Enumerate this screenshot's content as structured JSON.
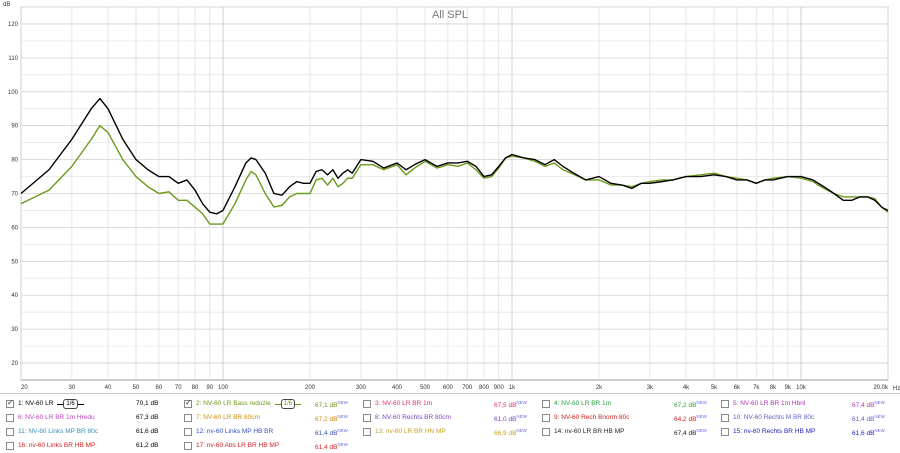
{
  "chart_data": {
    "type": "line",
    "title": "All SPL",
    "ylabel": "dB",
    "xlabel": "Hz",
    "x_scale": "log",
    "xlim": [
      20,
      20000
    ],
    "ylim": [
      15,
      125
    ],
    "grid": true,
    "yticks": [
      20,
      30,
      40,
      50,
      60,
      70,
      80,
      90,
      100,
      110,
      120
    ],
    "xticks": [
      {
        "v": 20,
        "l": "20"
      },
      {
        "v": 30,
        "l": "30"
      },
      {
        "v": 40,
        "l": "40"
      },
      {
        "v": 50,
        "l": "50"
      },
      {
        "v": 60,
        "l": "60"
      },
      {
        "v": 70,
        "l": "70"
      },
      {
        "v": 80,
        "l": "80"
      },
      {
        "v": 90,
        "l": "90"
      },
      {
        "v": 100,
        "l": "100"
      },
      {
        "v": 200,
        "l": "200"
      },
      {
        "v": 300,
        "l": "300"
      },
      {
        "v": 400,
        "l": "400"
      },
      {
        "v": 500,
        "l": "500"
      },
      {
        "v": 600,
        "l": "600"
      },
      {
        "v": 700,
        "l": "700"
      },
      {
        "v": 800,
        "l": "800"
      },
      {
        "v": 900,
        "l": "900"
      },
      {
        "v": 1000,
        "l": "1k"
      },
      {
        "v": 2000,
        "l": "2k"
      },
      {
        "v": 3000,
        "l": "3k"
      },
      {
        "v": 4000,
        "l": "4k"
      },
      {
        "v": 5000,
        "l": "5k"
      },
      {
        "v": 6000,
        "l": "6k"
      },
      {
        "v": 7000,
        "l": "7k"
      },
      {
        "v": 8000,
        "l": "8k"
      },
      {
        "v": 9000,
        "l": "9k"
      },
      {
        "v": 10000,
        "l": "10k"
      },
      {
        "v": 20000,
        "l": "20,0k"
      }
    ],
    "series": [
      {
        "name": "1: NV-60 LR",
        "color": "#000000",
        "points": [
          [
            20,
            70
          ],
          [
            25,
            77
          ],
          [
            30,
            86
          ],
          [
            35,
            95
          ],
          [
            37.5,
            98
          ],
          [
            40,
            95
          ],
          [
            45,
            86
          ],
          [
            50,
            80
          ],
          [
            55,
            77
          ],
          [
            60,
            75
          ],
          [
            65,
            75
          ],
          [
            70,
            73
          ],
          [
            75,
            74
          ],
          [
            80,
            71
          ],
          [
            85,
            67
          ],
          [
            90,
            64.5
          ],
          [
            95,
            64
          ],
          [
            100,
            65
          ],
          [
            110,
            72
          ],
          [
            120,
            79
          ],
          [
            125,
            80.5
          ],
          [
            130,
            80
          ],
          [
            140,
            76
          ],
          [
            150,
            70
          ],
          [
            160,
            69.5
          ],
          [
            170,
            72
          ],
          [
            180,
            73.5
          ],
          [
            190,
            73
          ],
          [
            200,
            73
          ],
          [
            210,
            76.5
          ],
          [
            220,
            77
          ],
          [
            230,
            75.5
          ],
          [
            240,
            77
          ],
          [
            250,
            74.5
          ],
          [
            260,
            76
          ],
          [
            270,
            77
          ],
          [
            280,
            76
          ],
          [
            300,
            80
          ],
          [
            330,
            79.5
          ],
          [
            360,
            77.5
          ],
          [
            400,
            79
          ],
          [
            430,
            77
          ],
          [
            460,
            78.5
          ],
          [
            500,
            80
          ],
          [
            550,
            78
          ],
          [
            600,
            79
          ],
          [
            650,
            79
          ],
          [
            700,
            79.5
          ],
          [
            750,
            78
          ],
          [
            800,
            75
          ],
          [
            850,
            75.5
          ],
          [
            900,
            78
          ],
          [
            950,
            80.5
          ],
          [
            1000,
            81.5
          ],
          [
            1100,
            80.5
          ],
          [
            1200,
            80
          ],
          [
            1300,
            78.5
          ],
          [
            1400,
            80
          ],
          [
            1500,
            78
          ],
          [
            1600,
            76.5
          ],
          [
            1800,
            74
          ],
          [
            2000,
            75
          ],
          [
            2200,
            73
          ],
          [
            2400,
            72.5
          ],
          [
            2600,
            71.5
          ],
          [
            2800,
            73
          ],
          [
            3000,
            73
          ],
          [
            3300,
            73.5
          ],
          [
            3600,
            74
          ],
          [
            4000,
            75
          ],
          [
            4500,
            75
          ],
          [
            5000,
            75.5
          ],
          [
            5500,
            75
          ],
          [
            6000,
            74
          ],
          [
            6500,
            74
          ],
          [
            7000,
            73
          ],
          [
            7500,
            74
          ],
          [
            8000,
            74
          ],
          [
            9000,
            75
          ],
          [
            10000,
            75
          ],
          [
            11000,
            74
          ],
          [
            12000,
            72
          ],
          [
            13000,
            70
          ],
          [
            14000,
            68
          ],
          [
            15000,
            68
          ],
          [
            16000,
            69
          ],
          [
            17000,
            69
          ],
          [
            18000,
            68
          ],
          [
            19000,
            66
          ],
          [
            20000,
            65
          ]
        ]
      },
      {
        "name": "2: NV-60 LR Bass reduzie",
        "color": "#6a9a1a",
        "points": [
          [
            20,
            67
          ],
          [
            25,
            71
          ],
          [
            30,
            78
          ],
          [
            35,
            86
          ],
          [
            37.5,
            90
          ],
          [
            40,
            88
          ],
          [
            45,
            80
          ],
          [
            50,
            75
          ],
          [
            55,
            72
          ],
          [
            60,
            70
          ],
          [
            65,
            70.5
          ],
          [
            70,
            68
          ],
          [
            75,
            68
          ],
          [
            80,
            66
          ],
          [
            85,
            64
          ],
          [
            90,
            61
          ],
          [
            95,
            61
          ],
          [
            100,
            61
          ],
          [
            110,
            67
          ],
          [
            120,
            74
          ],
          [
            125,
            76.5
          ],
          [
            130,
            75.5
          ],
          [
            140,
            70
          ],
          [
            150,
            66
          ],
          [
            160,
            66.5
          ],
          [
            170,
            69
          ],
          [
            180,
            70
          ],
          [
            190,
            70
          ],
          [
            200,
            70
          ],
          [
            210,
            74
          ],
          [
            220,
            74.5
          ],
          [
            230,
            72.5
          ],
          [
            240,
            74.5
          ],
          [
            250,
            72
          ],
          [
            260,
            73
          ],
          [
            270,
            74.5
          ],
          [
            280,
            74.5
          ],
          [
            300,
            78.5
          ],
          [
            330,
            78.5
          ],
          [
            360,
            77
          ],
          [
            400,
            78.5
          ],
          [
            430,
            75.5
          ],
          [
            460,
            77.5
          ],
          [
            500,
            79.5
          ],
          [
            550,
            77.5
          ],
          [
            600,
            78.5
          ],
          [
            650,
            78
          ],
          [
            700,
            79
          ],
          [
            750,
            77
          ],
          [
            800,
            74.5
          ],
          [
            850,
            75
          ],
          [
            900,
            77.5
          ],
          [
            950,
            80.5
          ],
          [
            1000,
            81
          ],
          [
            1100,
            80.5
          ],
          [
            1200,
            79.5
          ],
          [
            1300,
            78
          ],
          [
            1400,
            79
          ],
          [
            1500,
            77
          ],
          [
            1600,
            76
          ],
          [
            1800,
            74
          ],
          [
            2000,
            74
          ],
          [
            2200,
            72.5
          ],
          [
            2400,
            72.5
          ],
          [
            2600,
            72
          ],
          [
            2800,
            73
          ],
          [
            3000,
            73.5
          ],
          [
            3300,
            74
          ],
          [
            3600,
            74
          ],
          [
            4000,
            75
          ],
          [
            4500,
            75.5
          ],
          [
            5000,
            76
          ],
          [
            5500,
            75
          ],
          [
            6000,
            74.5
          ],
          [
            6500,
            74
          ],
          [
            7000,
            73
          ],
          [
            7500,
            74
          ],
          [
            8000,
            74.5
          ],
          [
            9000,
            75
          ],
          [
            10000,
            74.5
          ],
          [
            11000,
            73.5
          ],
          [
            12000,
            71.5
          ],
          [
            13000,
            70
          ],
          [
            14000,
            69
          ],
          [
            15000,
            69
          ],
          [
            16000,
            69
          ],
          [
            17000,
            69
          ],
          [
            18000,
            68.5
          ],
          [
            19000,
            66
          ],
          [
            20000,
            64.5
          ]
        ]
      }
    ]
  },
  "legend": {
    "rows": [
      [
        {
          "label": "1: NV-60 LR",
          "color": "#000000",
          "value": "70,1 dB",
          "checked": true,
          "smooth": "1/6"
        },
        {
          "label": "2: NV-60 LR Bass reduzie",
          "color": "#6a9a1a",
          "value": "67,1 dB",
          "checked": true,
          "smooth": "1/6"
        },
        {
          "label": "3: NV-60 LR BR 1m",
          "color": "#e0306a",
          "value": "67,5 dB",
          "checked": false,
          "smooth": ""
        },
        {
          "label": "4: NV-60 LR BR 1m",
          "color": "#2aa040",
          "value": "67,2 dB",
          "checked": false,
          "smooth": ""
        },
        {
          "label": "5: NV-60 LR BR 1m Hbril",
          "color": "#b030b0",
          "value": "67,4 dB",
          "checked": false,
          "smooth": ""
        }
      ],
      [
        {
          "label": "6: NV-60 LR BR 1m Hredu",
          "color": "#c040c0",
          "value": "67,3 dB",
          "checked": false,
          "smooth": ""
        },
        {
          "label": "7: NV-60 LR BR 80cm",
          "color": "#d08a10",
          "value": "67,2 dB",
          "checked": false,
          "smooth": ""
        },
        {
          "label": "8: NV-60 Rechts BR 80cm",
          "color": "#8040c0",
          "value": "61,0 dB",
          "checked": false,
          "smooth": ""
        },
        {
          "label": "9: NV-60 Rech Bnorm 80c",
          "color": "#d02020",
          "value": "64,2 dB",
          "checked": false,
          "smooth": ""
        },
        {
          "label": "10: NV-60 Rechts M BR 80c",
          "color": "#6060c0",
          "value": "61,4 dB",
          "checked": false,
          "smooth": ""
        }
      ],
      [
        {
          "label": "11: NV-60 Links MP BR 80c",
          "color": "#3090c0",
          "value": "61,6 dB",
          "checked": false,
          "smooth": ""
        },
        {
          "label": "12: nv-60 Links MP HB BR",
          "color": "#3050c0",
          "value": "61,4 dB",
          "checked": false,
          "smooth": ""
        },
        {
          "label": "13: nv-60 LR BR HN MP",
          "color": "#c0a020",
          "value": "66,9 dB",
          "checked": false,
          "smooth": ""
        },
        {
          "label": "14: nv-60 LR BR HB MP",
          "color": "#202020",
          "value": "67,4 dB",
          "checked": false,
          "smooth": ""
        },
        {
          "label": "15: nv-60 Rechts BR HB MP",
          "color": "#2020c0",
          "value": "61,6 dB",
          "checked": false,
          "smooth": ""
        }
      ],
      [
        {
          "label": "16: nv-60 Links BR HB MP",
          "color": "#d02020",
          "value": "61,2 dB",
          "checked": false,
          "smooth": ""
        },
        {
          "label": "17: nv-60 Abs LR BR HB MP",
          "color": "#d02020",
          "value": "61,4 dB",
          "checked": false,
          "smooth": ""
        }
      ]
    ],
    "new_tag": "NEW"
  }
}
